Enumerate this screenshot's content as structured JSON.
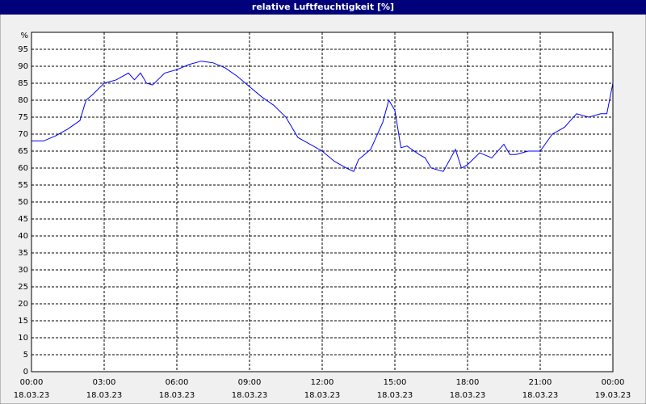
{
  "chart_data": {
    "type": "line",
    "title": "relative Luftfeuchtigkeit [%]",
    "y_unit": "%",
    "x": [
      0,
      0.5,
      1,
      1.5,
      2,
      2.25,
      2.5,
      3,
      3.5,
      4,
      4.25,
      4.5,
      4.75,
      5,
      5.5,
      6,
      6.5,
      7,
      7.5,
      8,
      8.5,
      9,
      9.5,
      10,
      10.5,
      11,
      11.5,
      12,
      12.5,
      13,
      13.3,
      13.5,
      14,
      14.5,
      14.75,
      15,
      15.25,
      15.5,
      16,
      16.25,
      16.5,
      17,
      17.5,
      17.75,
      18,
      18.5,
      19,
      19.5,
      19.75,
      20,
      20.5,
      21,
      21.5,
      22,
      22.5,
      23,
      23.5,
      23.75,
      24
    ],
    "values": [
      68,
      68,
      69.5,
      71.5,
      74,
      80,
      81.5,
      85,
      86,
      88,
      86,
      88,
      85,
      84.5,
      88,
      89,
      90.5,
      91.5,
      91,
      89.5,
      87,
      84,
      81,
      78.5,
      75,
      69,
      67,
      65,
      62,
      60,
      59,
      62.5,
      65.5,
      73.5,
      80,
      77,
      66,
      66.5,
      64,
      63,
      60,
      59,
      65.5,
      60,
      61,
      64.5,
      63,
      67,
      64,
      64,
      65,
      65,
      70,
      72,
      76,
      75,
      76,
      76,
      85
    ],
    "color": "#0000ff",
    "xlim": [
      0,
      24
    ],
    "xticks": [
      {
        "value": 0,
        "label": "00:00",
        "date": "18.03.23"
      },
      {
        "value": 3,
        "label": "03:00",
        "date": "18.03.23"
      },
      {
        "value": 6,
        "label": "06:00",
        "date": "18.03.23"
      },
      {
        "value": 9,
        "label": "09:00",
        "date": "18.03.23"
      },
      {
        "value": 12,
        "label": "12:00",
        "date": "18.03.23"
      },
      {
        "value": 15,
        "label": "15:00",
        "date": "18.03.23"
      },
      {
        "value": 18,
        "label": "18:00",
        "date": "18.03.23"
      },
      {
        "value": 21,
        "label": "21:00",
        "date": "18.03.23"
      },
      {
        "value": 24,
        "label": "00:00",
        "date": "19.03.23"
      }
    ],
    "ylim": [
      0,
      100
    ],
    "yticks": [
      0,
      5,
      10,
      15,
      20,
      25,
      30,
      35,
      40,
      45,
      50,
      55,
      60,
      65,
      70,
      75,
      80,
      85,
      90,
      95
    ],
    "grid": true
  }
}
